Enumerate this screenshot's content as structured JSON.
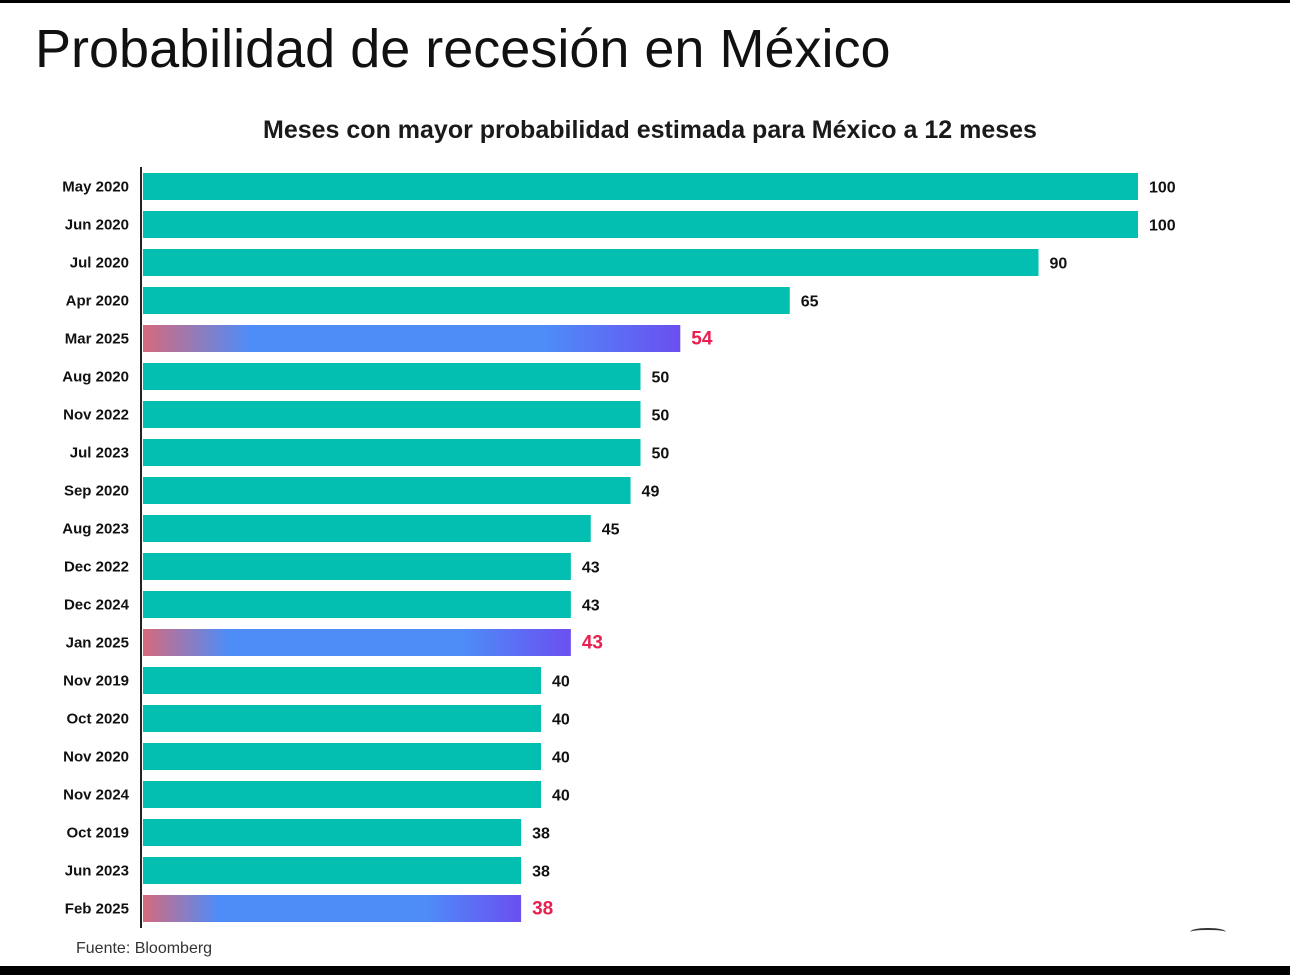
{
  "title": "Probabilidad de recesión en México",
  "source": "Fuente: Bloomberg",
  "colors": {
    "bar": "#02bfb2",
    "highlight_start": "#d66a7c",
    "highlight_mid": "#4e8cf8",
    "highlight_end": "#6a4ff0",
    "highlight_label": "#e8204f",
    "label": "#111111"
  },
  "chart_data": {
    "type": "bar",
    "orientation": "horizontal",
    "title": "Meses con mayor probabilidad estimada para México a 12 meses",
    "xlabel": "",
    "ylabel": "",
    "xlim": [
      0,
      100
    ],
    "grid": false,
    "legend": "none",
    "categories": [
      "May 2020",
      "Jun 2020",
      "Jul 2020",
      "Apr 2020",
      "Mar 2025",
      "Aug 2020",
      "Nov 2022",
      "Jul 2023",
      "Sep 2020",
      "Aug 2023",
      "Dec 2022",
      "Dec 2024",
      "Jan 2025",
      "Nov 2019",
      "Oct 2020",
      "Nov 2020",
      "Nov 2024",
      "Oct 2019",
      "Jun 2023",
      "Feb 2025"
    ],
    "values": [
      100,
      100,
      90,
      65,
      54,
      50,
      50,
      50,
      49,
      45,
      43,
      43,
      43,
      40,
      40,
      40,
      40,
      38,
      38,
      38
    ],
    "highlighted": [
      "Mar 2025",
      "Jan 2025",
      "Feb 2025"
    ]
  }
}
